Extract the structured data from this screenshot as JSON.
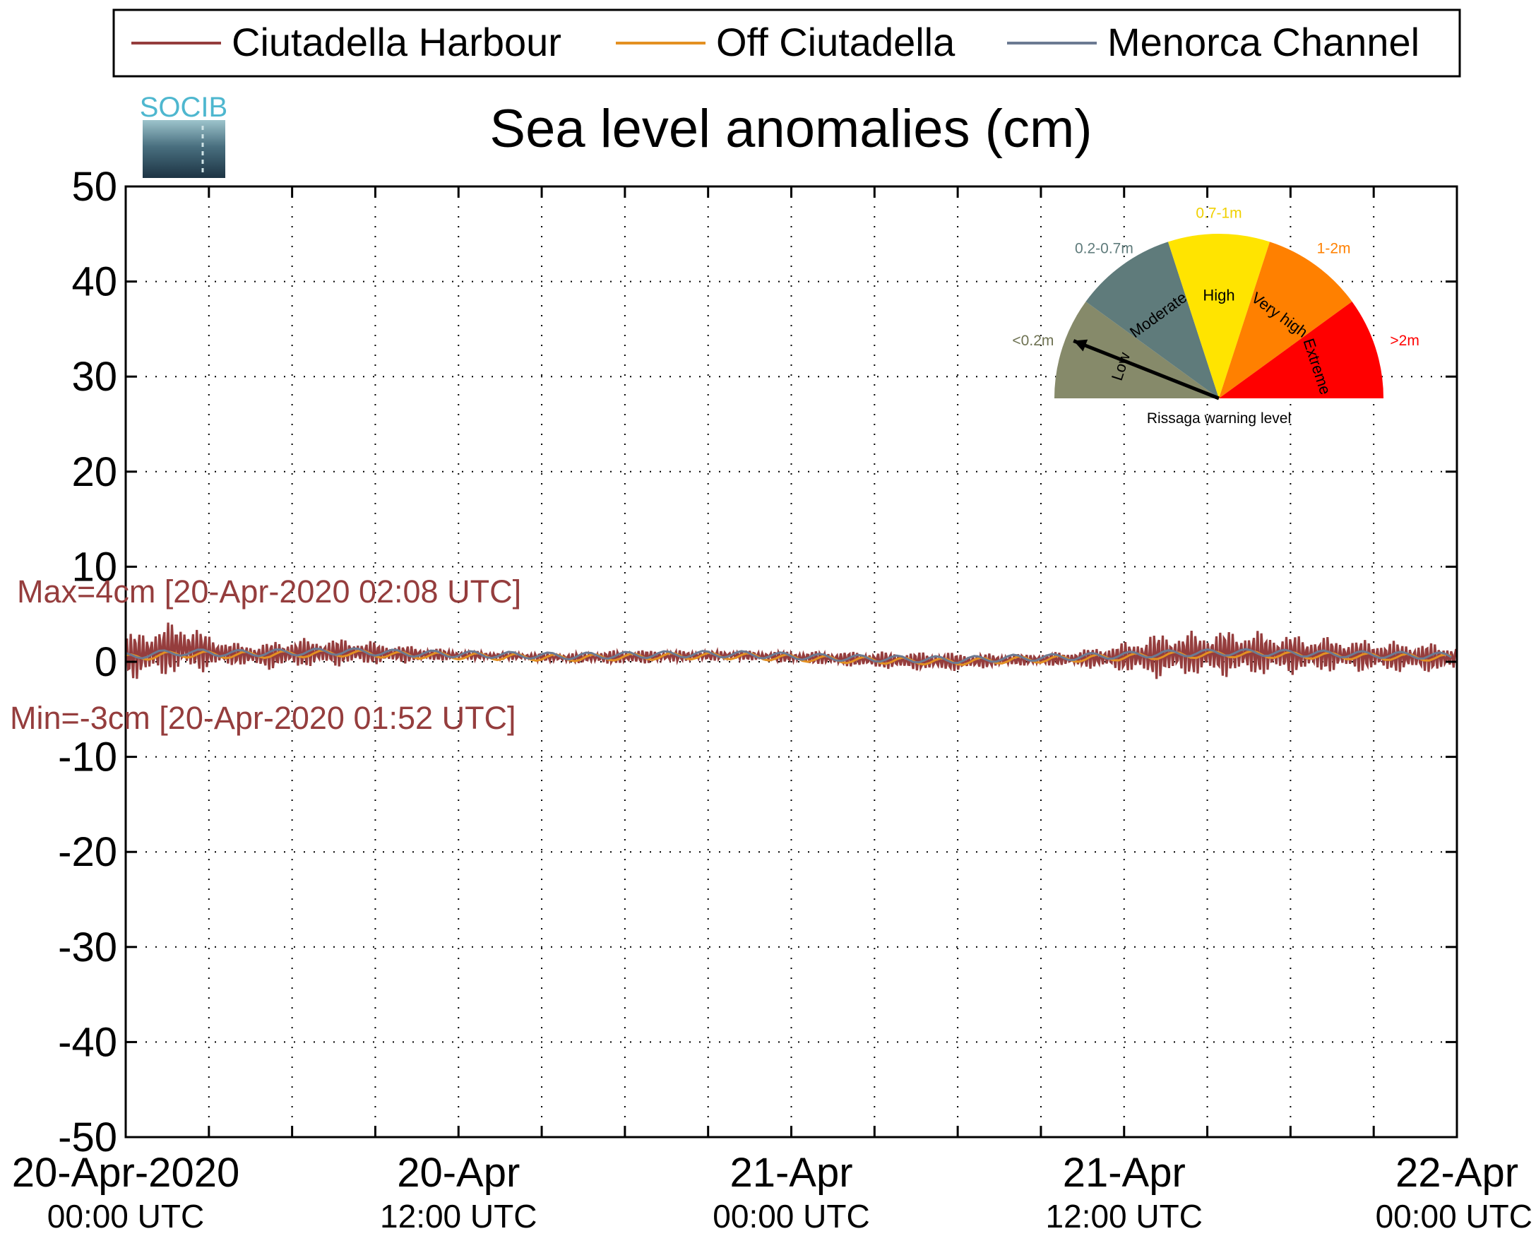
{
  "chart_data": {
    "type": "line",
    "title": "Sea level anomalies (cm)",
    "logo_text": "SOCIB",
    "xlabel": "",
    "ylabel": "",
    "ylim": [
      -50,
      50
    ],
    "yticks": [
      -50,
      -40,
      -30,
      -20,
      -10,
      0,
      10,
      20,
      30,
      40,
      50
    ],
    "xlim_hours": [
      0,
      48
    ],
    "x_minor_ticks_hours": [
      3,
      6,
      9,
      12,
      15,
      18,
      21,
      24,
      27,
      30,
      33,
      36,
      39,
      42,
      45
    ],
    "x_tick_labels": [
      {
        "hour": 0,
        "date": "20-Apr-2020",
        "time": "00:00 UTC"
      },
      {
        "hour": 12,
        "date": "20-Apr",
        "time": "12:00 UTC"
      },
      {
        "hour": 24,
        "date": "21-Apr",
        "time": "00:00 UTC"
      },
      {
        "hour": 36,
        "date": "21-Apr",
        "time": "12:00 UTC"
      },
      {
        "hour": 48,
        "date": "22-Apr",
        "time": "00:00 UTC"
      }
    ],
    "grid": true,
    "legend_position": "top",
    "series": [
      {
        "name": "Ciutadella Harbour",
        "color": "#953d3d",
        "x_hours": [
          0,
          1,
          2,
          3,
          4,
          5,
          6,
          8,
          10,
          12,
          14,
          16,
          18,
          20,
          22,
          24,
          26,
          28,
          30,
          32,
          34,
          36,
          37,
          38,
          40,
          42,
          44,
          46,
          48
        ],
        "y": [
          0.5,
          1.0,
          1.5,
          1.0,
          0.8,
          0.6,
          0.9,
          1.0,
          0.8,
          0.7,
          0.6,
          0.4,
          0.5,
          0.6,
          0.7,
          0.5,
          0.3,
          0.1,
          0.0,
          0.2,
          0.3,
          0.5,
          0.6,
          0.8,
          0.9,
          0.8,
          0.7,
          0.5,
          0.4
        ],
        "envelope_cm": [
          2.5,
          2.8,
          3.0,
          2.0,
          1.2,
          1.5,
          1.6,
          1.5,
          1.0,
          0.5,
          0.4,
          0.5,
          0.8,
          0.6,
          0.5,
          0.6,
          0.8,
          1.0,
          1.0,
          0.6,
          0.8,
          1.6,
          2.5,
          2.4,
          2.6,
          2.2,
          1.8,
          1.7,
          1.5
        ]
      },
      {
        "name": "Off Ciutadella",
        "color": "#e39022",
        "x_hours": [
          0,
          2,
          4,
          6,
          8,
          10,
          12,
          14,
          16,
          18,
          20,
          22,
          24,
          26,
          28,
          30,
          32,
          34,
          36,
          38,
          40,
          42,
          44,
          46,
          48
        ],
        "y": [
          0.4,
          0.8,
          0.7,
          0.8,
          0.9,
          0.7,
          0.6,
          0.5,
          0.4,
          0.5,
          0.6,
          0.6,
          0.4,
          0.2,
          0.1,
          0.0,
          0.2,
          0.3,
          0.5,
          0.7,
          0.8,
          0.7,
          0.6,
          0.5,
          0.4
        ]
      },
      {
        "name": "Menorca Channel",
        "color": "#6c7a92",
        "x_hours": [
          0,
          2,
          4,
          6,
          8,
          10,
          12,
          14,
          16,
          18,
          20,
          22,
          24,
          26,
          28,
          30,
          32,
          34,
          36,
          38,
          40,
          42,
          44,
          46,
          48
        ],
        "y": [
          0.6,
          1.0,
          0.9,
          1.0,
          1.1,
          0.9,
          0.8,
          0.7,
          0.6,
          0.7,
          0.8,
          0.8,
          0.6,
          0.4,
          0.3,
          0.2,
          0.4,
          0.5,
          0.7,
          0.9,
          1.0,
          0.9,
          0.8,
          0.7,
          0.6
        ]
      }
    ],
    "annotations": {
      "max": "Max=4cm [20-Apr-2020 02:08 UTC]",
      "min": "Min=-3cm [20-Apr-2020 01:52 UTC]",
      "color": "#953d3d"
    },
    "rissaga_gauge": {
      "caption": "Rissaga warning level",
      "current_level": "Low",
      "segments": [
        {
          "label": "Low",
          "range": "<0.2m",
          "color": "#868a6a",
          "range_color": "#6e7252"
        },
        {
          "label": "Moderate",
          "range": "0.2-0.7m",
          "color": "#5f7b7b",
          "range_color": "#5f7b7b"
        },
        {
          "label": "High",
          "range": "0.7-1m",
          "color": "#ffe400",
          "range_color": "#f0d000"
        },
        {
          "label": "Very high",
          "range": "1-2m",
          "color": "#ff8000",
          "range_color": "#ff8000"
        },
        {
          "label": "Extreme",
          "range": ">2m",
          "color": "#ff0000",
          "range_color": "#ff0000"
        }
      ]
    }
  }
}
